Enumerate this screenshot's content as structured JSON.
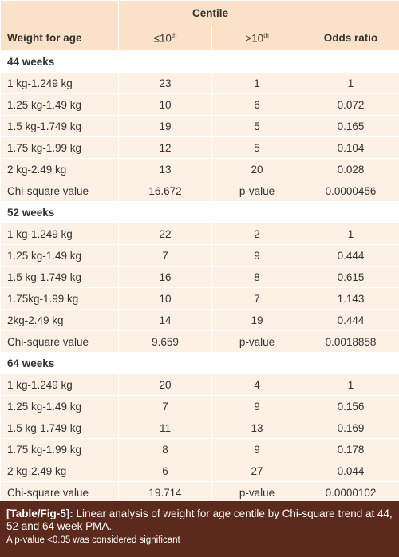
{
  "table": {
    "header": {
      "group": "Centile",
      "first": "Weight for age",
      "col1": {
        "text": "≤10",
        "sup": "th"
      },
      "col2": {
        "text": ">10",
        "sup": "th"
      },
      "last": "Odds ratio"
    },
    "sections": [
      {
        "title": "44 weeks",
        "rows": [
          [
            "1 kg-1.249 kg",
            "23",
            "1",
            "1"
          ],
          [
            "1.25 kg-1.49 kg",
            "10",
            "6",
            "0.072"
          ],
          [
            "1.5 kg-1.749 kg",
            "19",
            "5",
            "0.165"
          ],
          [
            "1.75 kg-1.99 kg",
            "12",
            "5",
            "0.104"
          ],
          [
            "2 kg-2.49 kg",
            "13",
            "20",
            "0.028"
          ],
          [
            "Chi-square value",
            "16.672",
            "p-value",
            "0.0000456"
          ]
        ]
      },
      {
        "title": "52 weeks",
        "rows": [
          [
            "1 kg-1.249 kg",
            "22",
            "2",
            "1"
          ],
          [
            "1.25 kg-1.49 kg",
            "7",
            "9",
            "0.444"
          ],
          [
            "1.5 kg-1.749 kg",
            "16",
            "8",
            "0.615"
          ],
          [
            "1.75kg-1.99 kg",
            "10",
            "7",
            "1.143"
          ],
          [
            "2kg-2.49 kg",
            "14",
            "19",
            "0.444"
          ],
          [
            "Chi-square value",
            "9.659",
            "p-value",
            "0.0018858"
          ]
        ]
      },
      {
        "title": "64 weeks",
        "rows": [
          [
            "1 kg-1.249 kg",
            "20",
            "4",
            "1"
          ],
          [
            "1.25 kg-1.49 kg",
            "7",
            "9",
            "0.156"
          ],
          [
            "1.5 kg-1.749 kg",
            "11",
            "13",
            "0.169"
          ],
          [
            "1.75 kg-1.99 kg",
            "8",
            "9",
            "0.178"
          ],
          [
            "2 kg-2.49 kg",
            "6",
            "27",
            "0.044"
          ],
          [
            "Chi-square value",
            "19.714",
            "p-value",
            "0.0000102"
          ]
        ]
      }
    ]
  },
  "caption": {
    "label": "[Table/Fig-5]:",
    "text": "Linear analysis of weight for age centile by Chi-square trend at 44, 52 and 64 week PMA.",
    "note": "A p-value <0.05 was considered significant"
  }
}
